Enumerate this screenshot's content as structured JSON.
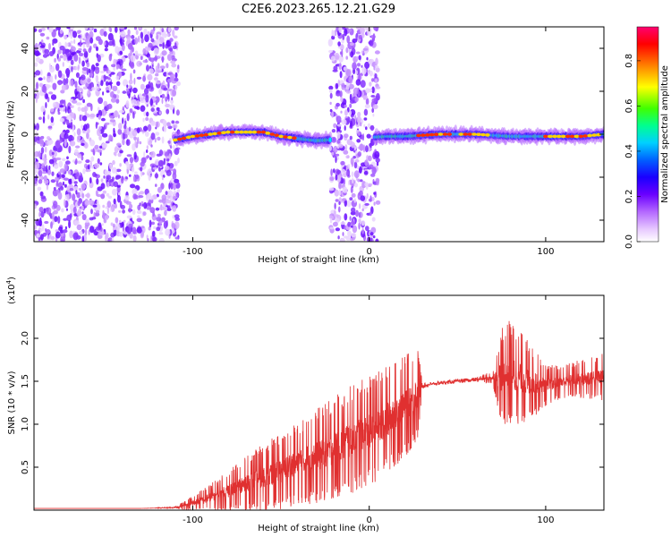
{
  "title": "C2E6.2023.265.12.21.G29",
  "chart_data": [
    {
      "type": "heatmap",
      "xlabel": "Height of straight line (km)",
      "ylabel": "Frequency (Hz)",
      "xlim": [
        -190,
        133
      ],
      "ylim": [
        -50,
        50
      ],
      "xticks": [
        -100,
        0,
        100
      ],
      "yticks": [
        -40,
        -20,
        0,
        20,
        40
      ],
      "grid": false,
      "colorbar": {
        "label": "Normalized spectral amplitude",
        "range": [
          0.0,
          0.95
        ],
        "ticks": [
          "0.0",
          "0.2",
          "0.4",
          "0.6",
          "0.8"
        ],
        "colormap": [
          "#ffffff",
          "#e6c6ff",
          "#b366ff",
          "#8a2be2",
          "#4b00ff",
          "#0040ff",
          "#00c8ff",
          "#00ff80",
          "#80ff00",
          "#ffff00",
          "#ff8000",
          "#ff0000",
          "#ff0060"
        ]
      },
      "noise_regions_km": [
        [
          -190,
          -108
        ],
        [
          -22,
          5
        ]
      ],
      "carrier_line": {
        "x_range_km": [
          -112,
          133
        ],
        "frequency_hz": [
          [
            -112,
            -3
          ],
          [
            -100,
            -1
          ],
          [
            -80,
            1
          ],
          [
            -60,
            1
          ],
          [
            -50,
            -1
          ],
          [
            -40,
            -2
          ],
          [
            -30,
            -3
          ],
          [
            10,
            -1
          ],
          [
            20,
            -1
          ],
          [
            40,
            0
          ],
          [
            60,
            0
          ],
          [
            80,
            -1
          ],
          [
            100,
            -1
          ],
          [
            120,
            -1
          ],
          [
            133,
            0
          ]
        ],
        "peak_segments_km": [
          [
            -110,
            -42
          ],
          [
            28,
            46
          ],
          [
            52,
            68
          ],
          [
            100,
            130
          ]
        ]
      }
    },
    {
      "type": "line",
      "xlabel": "Height of straight line (km)",
      "ylabel": "SNR (10 * v/v)",
      "yscale_note": "(x10",
      "yscale_exp": "4",
      "xlim": [
        -190,
        133
      ],
      "ylim": [
        0,
        2.5
      ],
      "xticks": [
        -100,
        0,
        100
      ],
      "yticks": [
        "0.5",
        "1.0",
        "1.5",
        "2.0"
      ],
      "ytick_values": [
        0.5,
        1.0,
        1.5,
        2.0
      ],
      "grid": false,
      "series": [
        {
          "color": "#e03030",
          "x": [
            -190,
            -160,
            -130,
            -110,
            -100,
            -90,
            -80,
            -70,
            -60,
            -50,
            -40,
            -30,
            -20,
            -10,
            0,
            10,
            20,
            28,
            30,
            40,
            50,
            60,
            70,
            75,
            80,
            90,
            100,
            110,
            120,
            133
          ],
          "y": [
            0.02,
            0.02,
            0.02,
            0.03,
            0.08,
            0.15,
            0.22,
            0.3,
            0.38,
            0.45,
            0.55,
            0.62,
            0.72,
            0.82,
            0.92,
            1.05,
            1.2,
            1.35,
            1.45,
            1.48,
            1.5,
            1.52,
            1.54,
            1.55,
            1.6,
            1.5,
            1.45,
            1.5,
            1.52,
            1.55
          ],
          "noise_amplitude": [
            0,
            0,
            0,
            0.01,
            0.12,
            0.2,
            0.3,
            0.4,
            0.5,
            0.55,
            0.6,
            0.7,
            0.75,
            0.8,
            0.8,
            0.8,
            0.75,
            0.7,
            0.04,
            0.03,
            0.03,
            0.03,
            0.1,
            0.7,
            0.8,
            0.6,
            0.3,
            0.25,
            0.3,
            0.35
          ]
        }
      ]
    }
  ]
}
